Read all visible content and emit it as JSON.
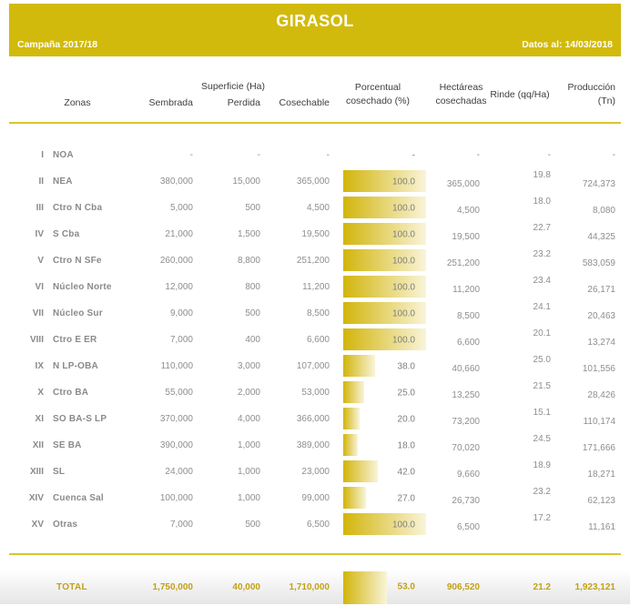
{
  "banner": {
    "title": "GIRASOL",
    "campaign": "Campaña 2017/18",
    "data_date": "Datos al: 14/03/2018"
  },
  "table": {
    "col_headers": {
      "zonas": "Zonas",
      "superficie_group": "Superficie (Ha)",
      "sembrada": "Sembrada",
      "perdida": "Perdida",
      "cosechable": "Cosechable",
      "porcentual": "Porcentual\ncosechado (%)",
      "hectareas": "Hectáreas\ncosechadas",
      "rinde": "Rinde (qq/Ha)",
      "produccion": "Producción\n(Tn)"
    },
    "rows": [
      {
        "num": "I",
        "zone": "NOA",
        "sembrada": "-",
        "perdida": "-",
        "cosechable": "-",
        "pct": "-",
        "pct_value": null,
        "hectareas": "-",
        "rinde": "-",
        "produccion": "-"
      },
      {
        "num": "II",
        "zone": "NEA",
        "sembrada": "380,000",
        "perdida": "15,000",
        "cosechable": "365,000",
        "pct": "100.0",
        "pct_value": 100,
        "hectareas": "365,000",
        "rinde": "19.8",
        "produccion": "724,373"
      },
      {
        "num": "III",
        "zone": "Ctro N Cba",
        "sembrada": "5,000",
        "perdida": "500",
        "cosechable": "4,500",
        "pct": "100.0",
        "pct_value": 100,
        "hectareas": "4,500",
        "rinde": "18.0",
        "produccion": "8,080"
      },
      {
        "num": "IV",
        "zone": "S Cba",
        "sembrada": "21,000",
        "perdida": "1,500",
        "cosechable": "19,500",
        "pct": "100.0",
        "pct_value": 100,
        "hectareas": "19,500",
        "rinde": "22.7",
        "produccion": "44,325"
      },
      {
        "num": "V",
        "zone": "Ctro N SFe",
        "sembrada": "260,000",
        "perdida": "8,800",
        "cosechable": "251,200",
        "pct": "100.0",
        "pct_value": 100,
        "hectareas": "251,200",
        "rinde": "23.2",
        "produccion": "583,059"
      },
      {
        "num": "VI",
        "zone": "Núcleo Norte",
        "sembrada": "12,000",
        "perdida": "800",
        "cosechable": "11,200",
        "pct": "100.0",
        "pct_value": 100,
        "hectareas": "11,200",
        "rinde": "23.4",
        "produccion": "26,171"
      },
      {
        "num": "VII",
        "zone": "Núcleo Sur",
        "sembrada": "9,000",
        "perdida": "500",
        "cosechable": "8,500",
        "pct": "100.0",
        "pct_value": 100,
        "hectareas": "8,500",
        "rinde": "24.1",
        "produccion": "20,463"
      },
      {
        "num": "VIII",
        "zone": "Ctro E ER",
        "sembrada": "7,000",
        "perdida": "400",
        "cosechable": "6,600",
        "pct": "100.0",
        "pct_value": 100,
        "hectareas": "6,600",
        "rinde": "20.1",
        "produccion": "13,274"
      },
      {
        "num": "IX",
        "zone": "N LP-OBA",
        "sembrada": "110,000",
        "perdida": "3,000",
        "cosechable": "107,000",
        "pct": "38.0",
        "pct_value": 38,
        "hectareas": "40,660",
        "rinde": "25.0",
        "produccion": "101,556"
      },
      {
        "num": "X",
        "zone": "Ctro BA",
        "sembrada": "55,000",
        "perdida": "2,000",
        "cosechable": "53,000",
        "pct": "25.0",
        "pct_value": 25,
        "hectareas": "13,250",
        "rinde": "21.5",
        "produccion": "28,426"
      },
      {
        "num": "XI",
        "zone": "SO BA-S LP",
        "sembrada": "370,000",
        "perdida": "4,000",
        "cosechable": "366,000",
        "pct": "20.0",
        "pct_value": 20,
        "hectareas": "73,200",
        "rinde": "15.1",
        "produccion": "110,174"
      },
      {
        "num": "XII",
        "zone": "SE BA",
        "sembrada": "390,000",
        "perdida": "1,000",
        "cosechable": "389,000",
        "pct": "18.0",
        "pct_value": 18,
        "hectareas": "70,020",
        "rinde": "24.5",
        "produccion": "171,666"
      },
      {
        "num": "XIII",
        "zone": "SL",
        "sembrada": "24,000",
        "perdida": "1,000",
        "cosechable": "23,000",
        "pct": "42.0",
        "pct_value": 42,
        "hectareas": "9,660",
        "rinde": "18.9",
        "produccion": "18,271"
      },
      {
        "num": "XIV",
        "zone": "Cuenca Sal",
        "sembrada": "100,000",
        "perdida": "1,000",
        "cosechable": "99,000",
        "pct": "27.0",
        "pct_value": 27,
        "hectareas": "26,730",
        "rinde": "23.2",
        "produccion": "62,123"
      },
      {
        "num": "XV",
        "zone": "Otras",
        "sembrada": "7,000",
        "perdida": "500",
        "cosechable": "6,500",
        "pct": "100.0",
        "pct_value": 100,
        "hectareas": "6,500",
        "rinde": "17.2",
        "produccion": "11,161"
      }
    ],
    "total": {
      "label": "TOTAL",
      "sembrada": "1,750,000",
      "perdida": "40,000",
      "cosechable": "1,710,000",
      "pct": "53.0",
      "pct_value": 53,
      "hectareas": "906,520",
      "rinde": "21.2",
      "produccion": "1,923,121"
    }
  },
  "colors": {
    "banner": "#d2ba0c",
    "bar_start": "#d2b50b",
    "bar_end": "#f9f4d9",
    "line": "#d8c532",
    "total_text": "#c2a118",
    "value_text": "#8e8e8e",
    "label_text": "#8a8a8a",
    "header_text": "#3e3e3e"
  }
}
